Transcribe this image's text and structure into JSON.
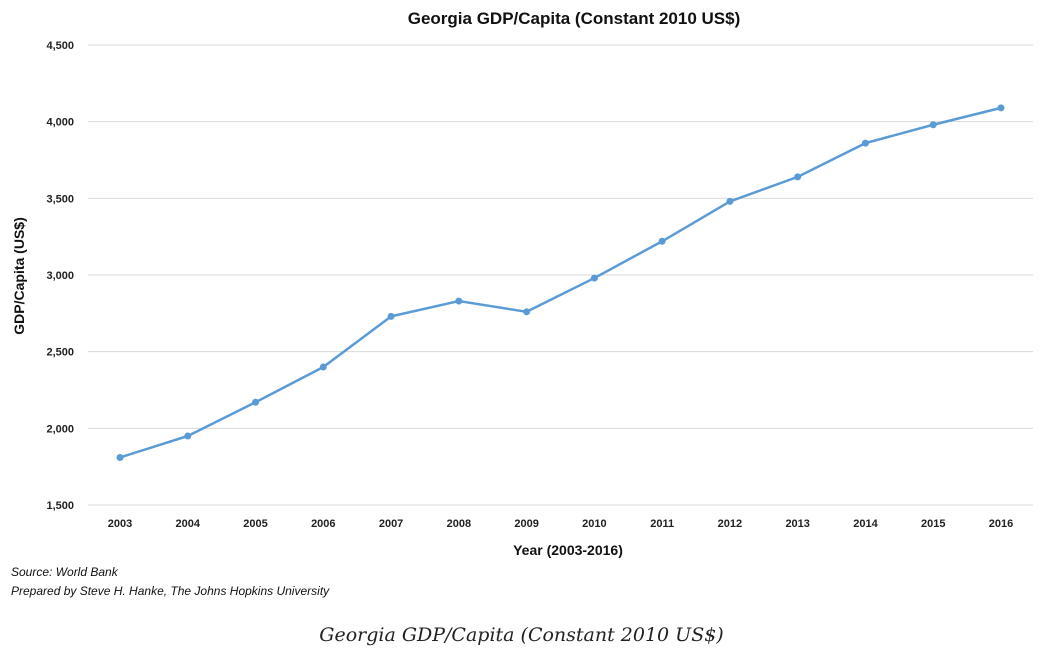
{
  "chart_data": {
    "type": "line",
    "title": "Georgia GDP/Capita (Constant 2010 US$)",
    "xlabel": "Year (2003-2016)",
    "ylabel": "GDP/Capita (US$)",
    "ylim": [
      1500,
      4500
    ],
    "yticks": [
      "1,500",
      "2,000",
      "2,500",
      "3,000",
      "3,500",
      "4,000",
      "4,500"
    ],
    "ytick_values": [
      1500,
      2000,
      2500,
      3000,
      3500,
      4000,
      4500
    ],
    "categories": [
      "2003",
      "2004",
      "2005",
      "2006",
      "2007",
      "2008",
      "2009",
      "2010",
      "2011",
      "2012",
      "2013",
      "2014",
      "2015",
      "2016"
    ],
    "series": [
      {
        "name": "",
        "values": [
          1810,
          1950,
          2170,
          2400,
          2730,
          2830,
          2760,
          2980,
          3220,
          3480,
          3640,
          3860,
          3980,
          4090
        ]
      }
    ],
    "grid": true,
    "legend": "none",
    "color": "#5b9bd5"
  },
  "notes": {
    "source": "Source: World Bank",
    "prepared_by": "Prepared by Steve H. Hanke, The Johns Hopkins University"
  },
  "caption": "Georgia GDP/Capita (Constant 2010 US$)"
}
